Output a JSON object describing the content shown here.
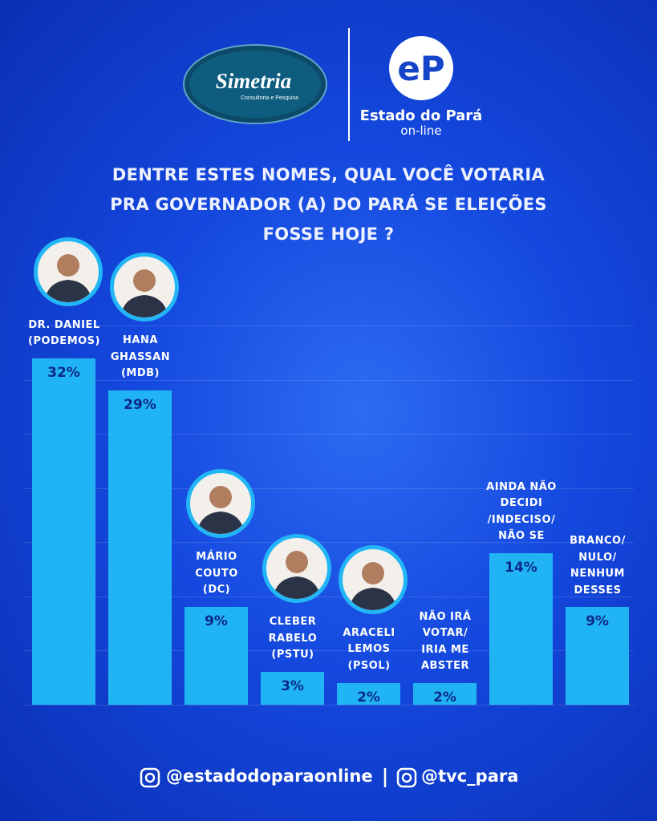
{
  "header": {
    "logo_left": "Simetria",
    "logo_left_sub": "Consultoria e Pesquisa",
    "logo_right": "Estado do Pará",
    "logo_right_sub": "on-line"
  },
  "chart_data": {
    "type": "bar",
    "title": "DENTRE ESTES NOMES, QUAL VOCÊ VOTARIA\nPRA GOVERNADOR (A) DO PARÁ SE ELEIÇÕES\nFOSSE HOJE ?",
    "categories": [
      "DR. DANIEL\n(PODEMOS)",
      "HANA\nGHASSAN\n(MDB)",
      "MÁRIO\nCOUTO\n(DC)",
      "CLEBER\nRABELO\n(PSTU)",
      "ARACELI\nLEMOS\n(PSOL)",
      "NÃO IRÁ\nVOTAR/\nIRIA ME\nABSTER",
      "AINDA NÃO\nDECIDI\n/INDECISO/\nNÃO SE",
      "BRANCO/\nNULO/\nNENHUM\nDESSES"
    ],
    "values": [
      32,
      29,
      9,
      3,
      2,
      2,
      14,
      9
    ],
    "value_labels": [
      "32%",
      "29%",
      "9%",
      "3%",
      "2%",
      "2%",
      "14%",
      "9%"
    ],
    "color": "#21b4f4",
    "ylim": [
      0,
      35
    ],
    "yticks": [
      0,
      5,
      10,
      15,
      20,
      25,
      30,
      35
    ],
    "grid": true
  },
  "footer": {
    "instagram_1": "@estadodoparaonline",
    "instagram_2": "@tvc_para"
  }
}
